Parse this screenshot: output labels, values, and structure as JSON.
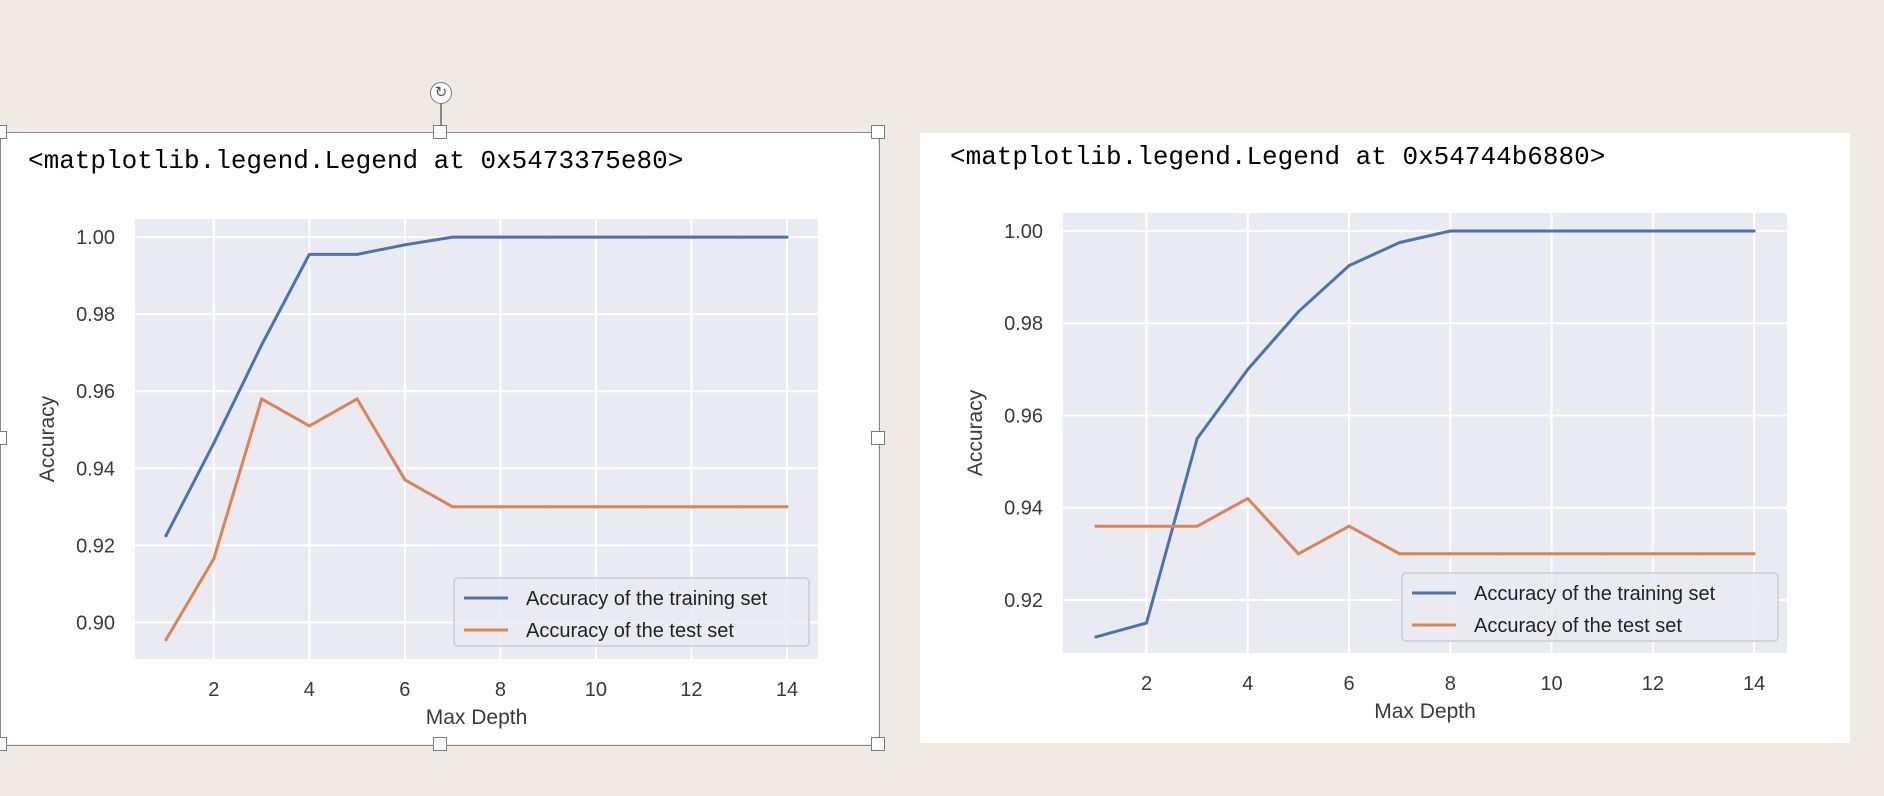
{
  "outputs": [
    {
      "text": "<matplotlib.legend.Legend at 0x5473375e80>"
    },
    {
      "text": "<matplotlib.legend.Legend at 0x54744b6880>"
    }
  ],
  "chart_data": [
    {
      "type": "line",
      "xlabel": "Max Depth",
      "ylabel": "Accuracy",
      "xlim": [
        0.35,
        14.65
      ],
      "ylim": [
        0.8905,
        1.0047
      ],
      "xticks": [
        2,
        4,
        6,
        8,
        10,
        12,
        14
      ],
      "yticks": [
        0.9,
        0.92,
        0.94,
        0.96,
        0.98,
        1.0
      ],
      "ytick_labels": [
        "0.90",
        "0.92",
        "0.94",
        "0.96",
        "0.98",
        "1.00"
      ],
      "x": [
        1,
        2,
        3,
        4,
        5,
        6,
        7,
        8,
        9,
        10,
        11,
        12,
        13,
        14
      ],
      "series": [
        {
          "name": "Accuracy of the training set",
          "color": "#4c72b0",
          "values": [
            0.9225,
            0.9465,
            0.972,
            0.9955,
            0.9955,
            0.998,
            1.0,
            1.0,
            1.0,
            1.0,
            1.0,
            1.0,
            1.0,
            1.0
          ]
        },
        {
          "name": "Accuracy of the test set",
          "color": "#dd8452",
          "values": [
            0.8955,
            0.9165,
            0.958,
            0.951,
            0.958,
            0.937,
            0.93,
            0.93,
            0.93,
            0.93,
            0.93,
            0.93,
            0.93,
            0.93
          ]
        }
      ],
      "grid": true,
      "legend_position": "lower right"
    },
    {
      "type": "line",
      "xlabel": "Max Depth",
      "ylabel": "Accuracy",
      "xlim": [
        0.35,
        14.65
      ],
      "ylim": [
        0.9085,
        1.0039
      ],
      "xticks": [
        2,
        4,
        6,
        8,
        10,
        12,
        14
      ],
      "yticks": [
        0.92,
        0.94,
        0.96,
        0.98,
        1.0
      ],
      "ytick_labels": [
        "0.92",
        "0.94",
        "0.96",
        "0.98",
        "1.00"
      ],
      "x": [
        1,
        2,
        3,
        4,
        5,
        6,
        7,
        8,
        9,
        10,
        11,
        12,
        13,
        14
      ],
      "series": [
        {
          "name": "Accuracy of the training set",
          "color": "#4c72b0",
          "values": [
            0.912,
            0.915,
            0.955,
            0.97,
            0.9825,
            0.9925,
            0.9975,
            1.0,
            1.0,
            1.0,
            1.0,
            1.0,
            1.0,
            1.0
          ]
        },
        {
          "name": "Accuracy of the test set",
          "color": "#dd8452",
          "values": [
            0.936,
            0.936,
            0.936,
            0.942,
            0.93,
            0.936,
            0.93,
            0.93,
            0.93,
            0.93,
            0.93,
            0.93,
            0.93,
            0.93
          ]
        }
      ],
      "grid": true,
      "legend_position": "lower right"
    }
  ]
}
